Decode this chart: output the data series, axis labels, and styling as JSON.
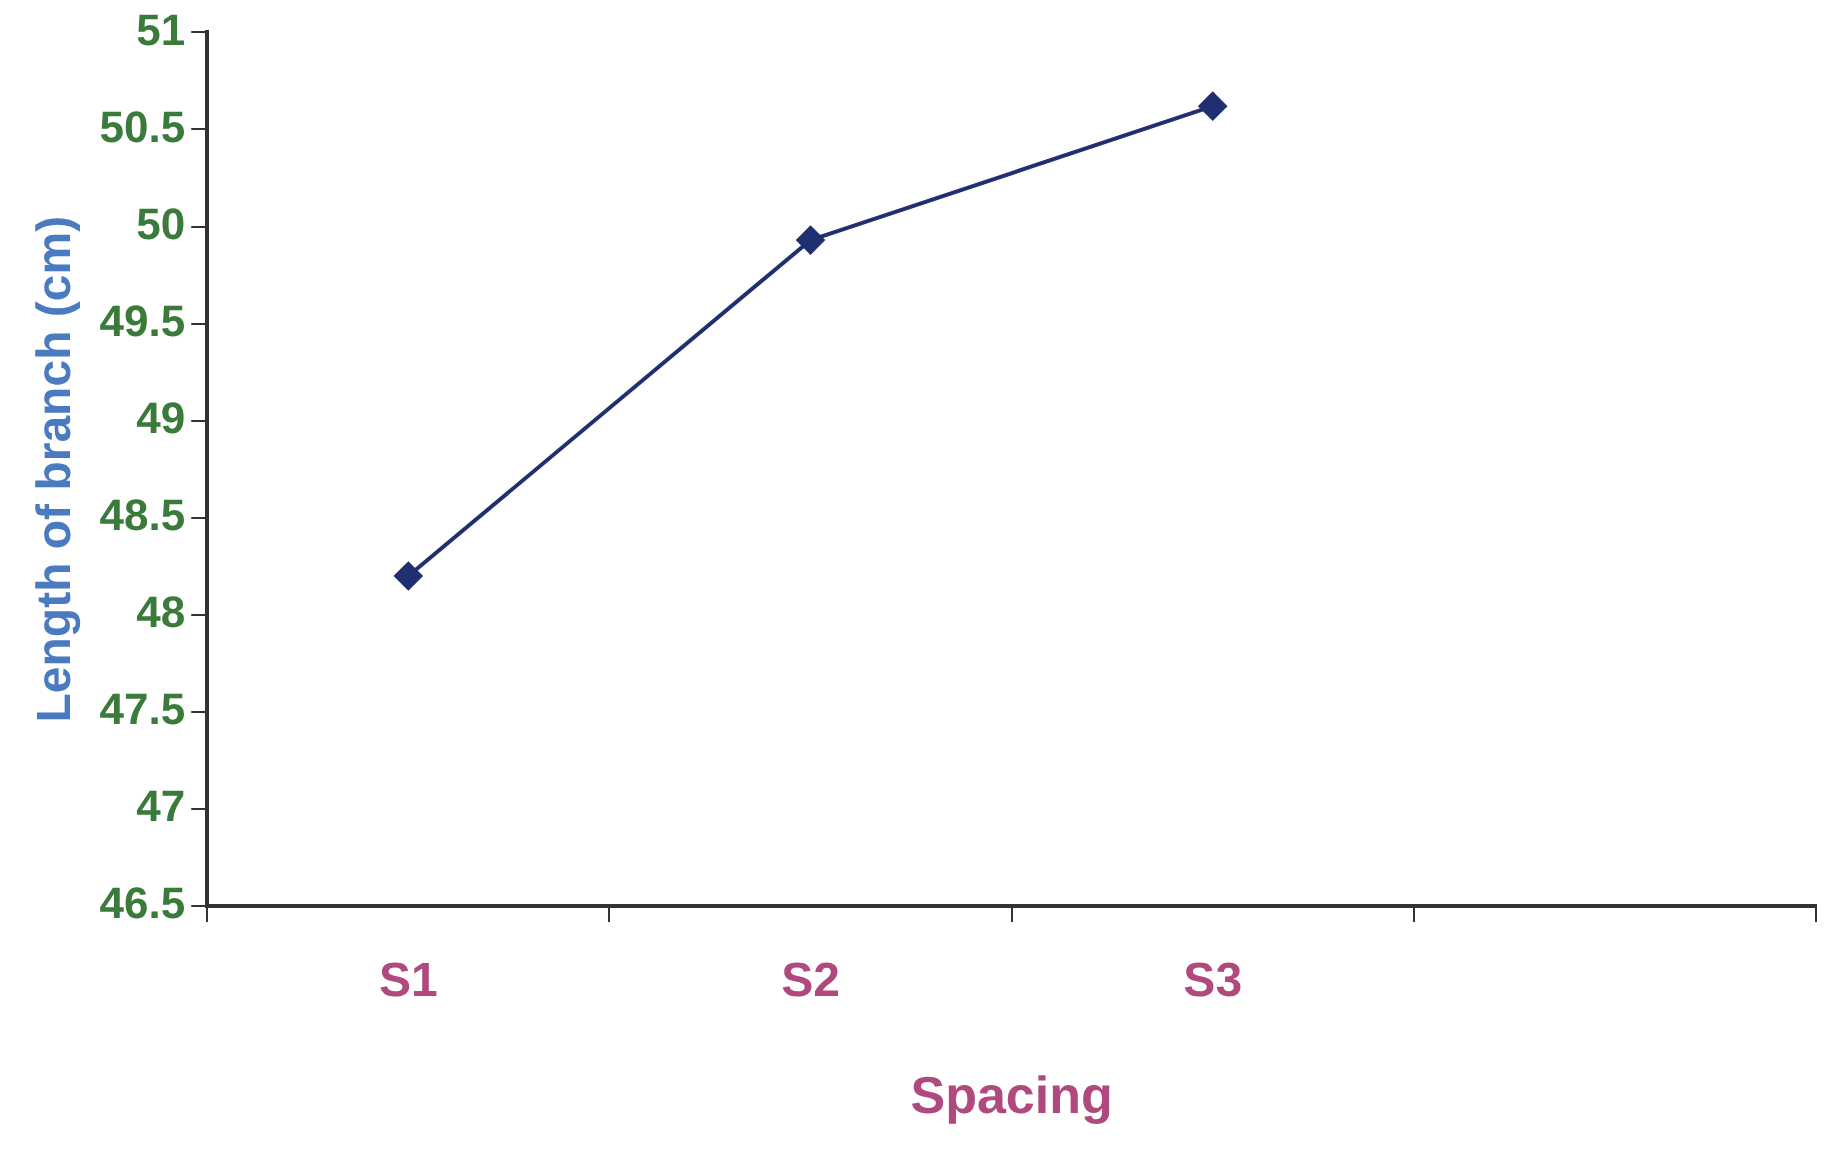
{
  "chart_data": {
    "type": "line",
    "xlabel": "Spacing",
    "ylabel": "Length of branch (cm)",
    "categories": [
      "S1",
      "S2",
      "S3",
      null
    ],
    "series": [
      {
        "color": "#1f2f6f",
        "values": [
          48.2,
          49.93,
          50.62,
          null
        ]
      }
    ],
    "ylim": [
      46.5,
      51
    ],
    "yticks": [
      46.5,
      47,
      47.5,
      48,
      48.5,
      49,
      49.5,
      50,
      50.5,
      51
    ],
    "grid": false,
    "legend": false,
    "marker": "diamond",
    "line_style": "solid"
  }
}
